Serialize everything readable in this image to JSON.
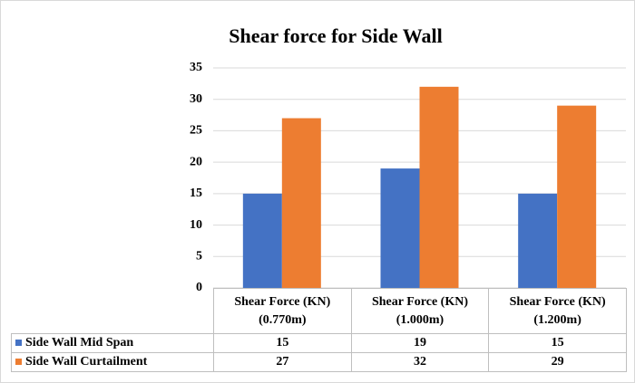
{
  "chart_data": {
    "type": "bar",
    "title": "Shear force for Side Wall",
    "categories": [
      "Shear Force (KN) (0.770m)",
      "Shear Force (KN) (1.000m)",
      "Shear Force (KN) (1.200m)"
    ],
    "series": [
      {
        "name": "Side Wall Mid Span",
        "color": "#4472c4",
        "values": [
          15,
          19,
          15
        ]
      },
      {
        "name": "Side Wall Curtailment",
        "color": "#ed7d31",
        "values": [
          27,
          32,
          29
        ]
      }
    ],
    "ylim": [
      0,
      35
    ],
    "yticks": [
      0,
      5,
      10,
      15,
      20,
      25,
      30,
      35
    ],
    "grid": true,
    "data_table": true
  }
}
